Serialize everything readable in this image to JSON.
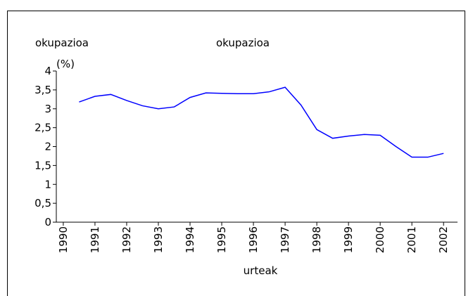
{
  "chart_data": {
    "type": "line",
    "title": "okupazioa",
    "y_label": "okupazioa",
    "y_unit": "(%)",
    "x_label": "urteak",
    "x": [
      1990.5,
      1991.0,
      1991.5,
      1992.0,
      1992.5,
      1993.0,
      1993.5,
      1994.0,
      1994.5,
      1995.0,
      1995.5,
      1996.0,
      1996.5,
      1997.0,
      1997.5,
      1998.0,
      1998.5,
      1999.0,
      1999.5,
      2000.0,
      2000.5,
      2001.0,
      2001.5,
      2002.0
    ],
    "series": [
      {
        "name": "okupazioa",
        "color": "#0000ff",
        "values": [
          3.18,
          3.33,
          3.38,
          3.22,
          3.08,
          3.0,
          3.05,
          3.3,
          3.42,
          3.41,
          3.4,
          3.4,
          3.45,
          3.57,
          3.1,
          2.45,
          2.22,
          2.28,
          2.32,
          2.3,
          2.0,
          1.72,
          1.72,
          1.82
        ]
      }
    ],
    "xlim": [
      1989.78,
      2002.44
    ],
    "xticks": [
      1990,
      1991,
      1992,
      1993,
      1994,
      1995,
      1996,
      1997,
      1998,
      1999,
      2000,
      2001,
      2002
    ],
    "ylim": [
      0,
      4
    ],
    "yticks": [
      0,
      {
        "value": 0.5,
        "label": "0,5"
      },
      1,
      {
        "value": 1.5,
        "label": "1,5"
      },
      2,
      {
        "value": 2.5,
        "label": "2,5"
      },
      3,
      {
        "value": 3.5,
        "label": "3,5"
      },
      4
    ],
    "grid": false
  }
}
